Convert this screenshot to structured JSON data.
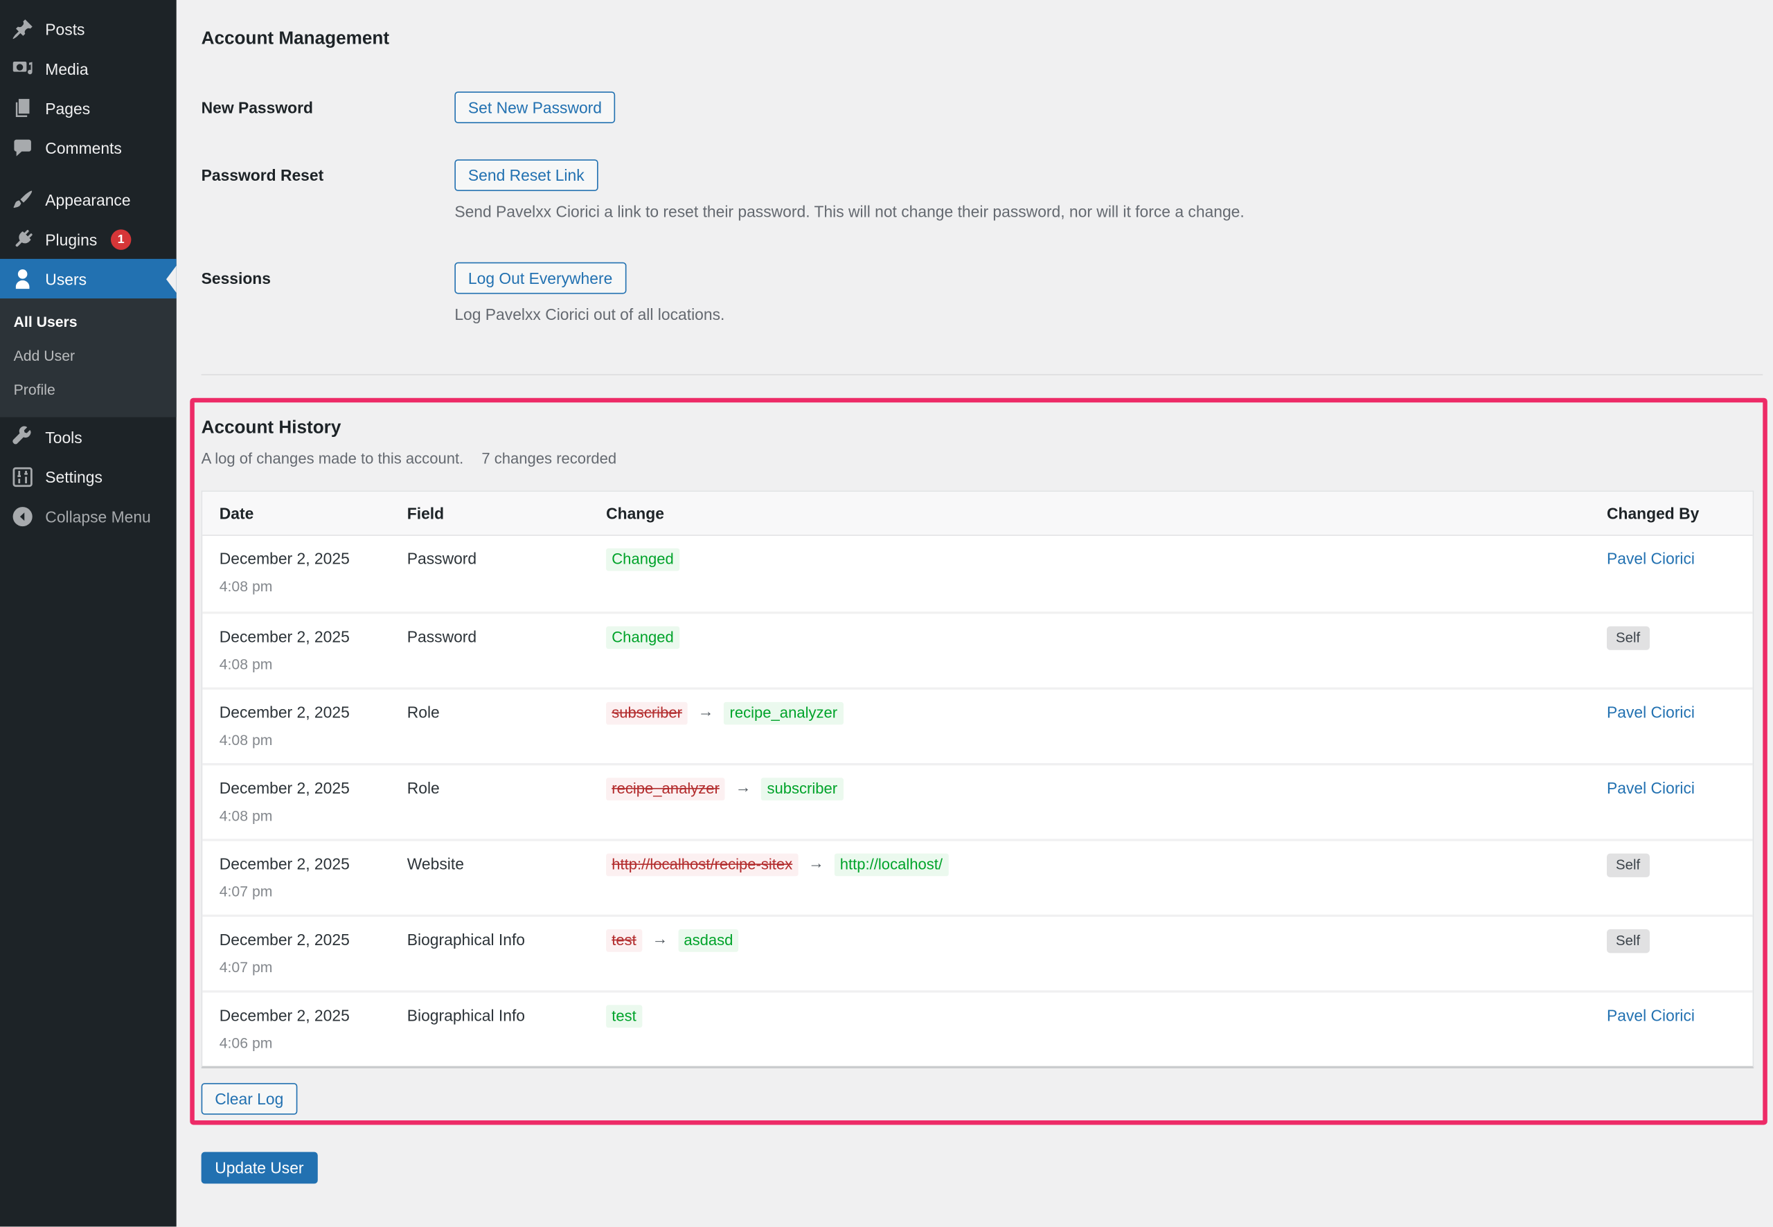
{
  "colors": {
    "accent_blue": "#2271b1",
    "annotation_pink": "#ed2b67",
    "success_green": "#00a32a",
    "danger_red": "#b32d2e",
    "badge_red": "#d63638",
    "sidebar_bg": "#1d2327",
    "page_bg": "#f0f0f1"
  },
  "arrow_glyph": "→",
  "sidebar": {
    "items": [
      {
        "id": "posts",
        "label": "Posts",
        "icon": "pin-icon"
      },
      {
        "id": "media",
        "label": "Media",
        "icon": "media-icon"
      },
      {
        "id": "pages",
        "label": "Pages",
        "icon": "pages-icon"
      },
      {
        "id": "comments",
        "label": "Comments",
        "icon": "comment-icon"
      },
      {
        "id": "appearance",
        "label": "Appearance",
        "icon": "brush-icon",
        "group_start": true
      },
      {
        "id": "plugins",
        "label": "Plugins",
        "icon": "plugin-icon",
        "badge": "1"
      },
      {
        "id": "users",
        "label": "Users",
        "icon": "user-icon",
        "active": true,
        "submenu": [
          {
            "id": "all-users",
            "label": "All Users",
            "current": true
          },
          {
            "id": "add-user",
            "label": "Add User"
          },
          {
            "id": "profile",
            "label": "Profile"
          }
        ]
      },
      {
        "id": "tools",
        "label": "Tools",
        "icon": "wrench-icon"
      },
      {
        "id": "settings",
        "label": "Settings",
        "icon": "sliders-icon"
      },
      {
        "id": "collapse",
        "label": "Collapse Menu",
        "icon": "collapse-icon",
        "muted": true
      }
    ]
  },
  "account_management": {
    "title": "Account Management",
    "rows": [
      {
        "label": "New Password",
        "button": "Set New Password"
      },
      {
        "label": "Password Reset",
        "button": "Send Reset Link",
        "description": "Send Pavelxx Ciorici a link to reset their password. This will not change their password, nor will it force a change."
      },
      {
        "label": "Sessions",
        "button": "Log Out Everywhere",
        "description": "Log Pavelxx Ciorici out of all locations."
      }
    ]
  },
  "account_history": {
    "title": "Account History",
    "subtitle": "A log of changes made to this account.",
    "count_text": "7 changes recorded",
    "columns": [
      "Date",
      "Field",
      "Change",
      "Changed By"
    ],
    "rows": [
      {
        "date": "December 2, 2025",
        "time": "4:08 pm",
        "field": "Password",
        "change": {
          "new": "Changed"
        },
        "by": {
          "type": "link",
          "label": "Pavel Ciorici"
        }
      },
      {
        "date": "December 2, 2025",
        "time": "4:08 pm",
        "field": "Password",
        "change": {
          "new": "Changed"
        },
        "by": {
          "type": "badge",
          "label": "Self"
        }
      },
      {
        "date": "December 2, 2025",
        "time": "4:08 pm",
        "field": "Role",
        "change": {
          "old": "subscriber",
          "new": "recipe_analyzer"
        },
        "by": {
          "type": "link",
          "label": "Pavel Ciorici"
        }
      },
      {
        "date": "December 2, 2025",
        "time": "4:08 pm",
        "field": "Role",
        "change": {
          "old": "recipe_analyzer",
          "new": "subscriber"
        },
        "by": {
          "type": "link",
          "label": "Pavel Ciorici"
        }
      },
      {
        "date": "December 2, 2025",
        "time": "4:07 pm",
        "field": "Website",
        "change": {
          "old": "http://localhost/recipe-sitex",
          "new": "http://localhost/"
        },
        "by": {
          "type": "badge",
          "label": "Self"
        }
      },
      {
        "date": "December 2, 2025",
        "time": "4:07 pm",
        "field": "Biographical Info",
        "change": {
          "old": "test",
          "new": "asdasd"
        },
        "by": {
          "type": "badge",
          "label": "Self"
        }
      },
      {
        "date": "December 2, 2025",
        "time": "4:06 pm",
        "field": "Biographical Info",
        "change": {
          "new": "test"
        },
        "by": {
          "type": "link",
          "label": "Pavel Ciorici"
        }
      }
    ],
    "clear_button": "Clear Log"
  },
  "update_button": "Update User"
}
